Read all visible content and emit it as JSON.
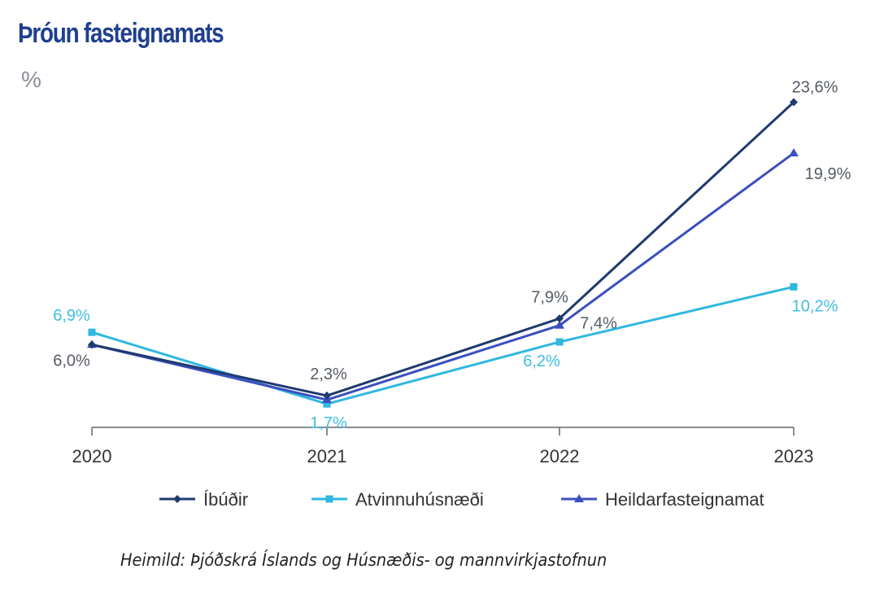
{
  "chart_data": {
    "type": "line",
    "title": "Þróun fasteignamats",
    "ylabel": "%",
    "xlabel": "",
    "categories": [
      "2020",
      "2021",
      "2022",
      "2023"
    ],
    "ylim": [
      0,
      25
    ],
    "grid": false,
    "legend_position": "bottom",
    "series": [
      {
        "name": "Íbúðir",
        "color": "#1f3a6e",
        "marker": "diamond",
        "values": [
          6.0,
          2.3,
          7.9,
          23.6
        ],
        "labels": [
          "6,0%",
          "2,3%",
          "7,9%",
          "23,6%"
        ],
        "label_color": "#555b66"
      },
      {
        "name": "Atvinnuhúsnæði",
        "color": "#2fb8e0",
        "marker": "square",
        "values": [
          6.9,
          1.7,
          6.2,
          10.2
        ],
        "labels": [
          "6,9%",
          "1,7%",
          "6,2%",
          "10,2%"
        ],
        "label_color": "#3dbde3"
      },
      {
        "name": "Heildarfasteignamat",
        "color": "#3c4fbf",
        "marker": "triangle",
        "values": [
          6.0,
          2.0,
          7.4,
          19.9
        ],
        "labels": [
          null,
          null,
          "7,4%",
          "19,9%"
        ],
        "label_color": "#555b66"
      }
    ]
  },
  "source": "Heimild: Þjóðskrá Íslands og Húsnæðis- og mannvirkjastofnun"
}
